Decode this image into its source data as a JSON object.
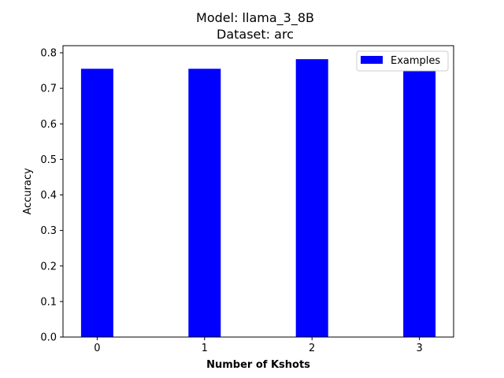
{
  "chart_data": {
    "type": "bar",
    "title_line1": "Model: llama_3_8B",
    "title_line2": "Dataset: arc",
    "xlabel": "Number of Kshots",
    "ylabel": "Accuracy",
    "categories": [
      "0",
      "1",
      "2",
      "3"
    ],
    "series": [
      {
        "name": "Examples",
        "values": [
          0.755,
          0.755,
          0.782,
          0.765
        ]
      }
    ],
    "ylim": [
      0,
      0.8
    ],
    "yticks": [
      "0.0",
      "0.1",
      "0.2",
      "0.3",
      "0.4",
      "0.5",
      "0.6",
      "0.7",
      "0.8"
    ],
    "grid": false,
    "legend_position": "top-right",
    "bar_color": "#0000ff"
  }
}
